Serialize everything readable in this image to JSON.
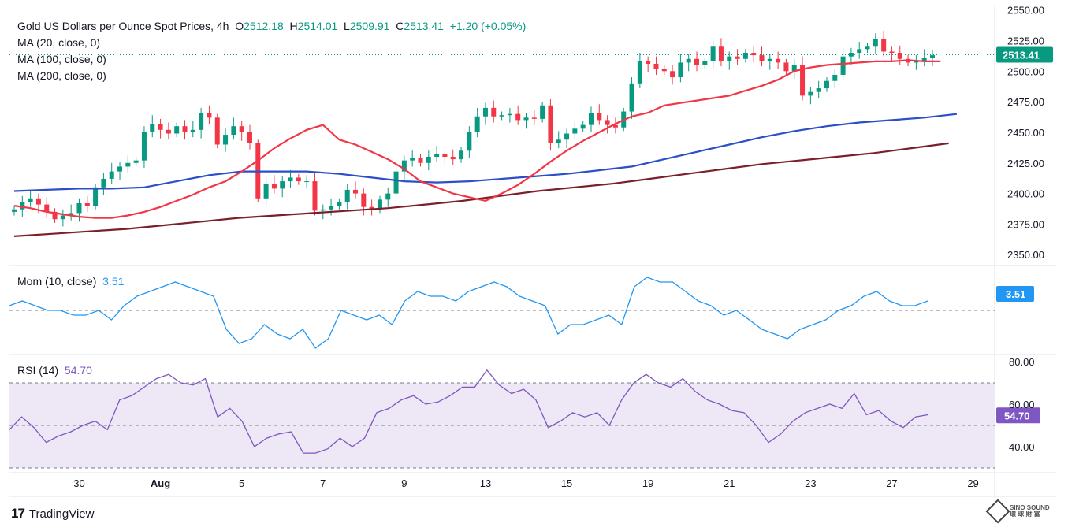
{
  "header": {
    "symbol": "Gold US Dollars per Ounce Spot Prices, 4h",
    "open_label": "O",
    "open": "2512.18",
    "high_label": "H",
    "high": "2514.01",
    "low_label": "L",
    "low": "2509.91",
    "close_label": "C",
    "close": "2513.41",
    "change": "+1.20 (+0.05%)"
  },
  "indicators": {
    "ma20": "MA (20, close, 0)",
    "ma100": "MA (100, close, 0)",
    "ma200": "MA (200, close, 0)",
    "mom": "Mom (10, close)",
    "mom_value": "3.51",
    "rsi": "RSI (14)",
    "rsi_value": "54.70"
  },
  "footer": {
    "brand": "TradingView",
    "watermark_top": "SINO SOUND",
    "watermark_bottom": "環 球 財 富"
  },
  "colors": {
    "up": "#089981",
    "down": "#F23645",
    "ma20": "#F23645",
    "ma100": "#2B4FC7",
    "ma200": "#7B1F2A",
    "mom": "#2196F3",
    "rsi": "#7E57C2",
    "rsi_band": "#EDE7F6"
  },
  "chart_data": {
    "type": "candlestick",
    "price_axis": {
      "ticks": [
        "2550.00",
        "2525.00",
        "2500.00",
        "2475.00",
        "2450.00",
        "2425.00",
        "2400.00",
        "2375.00",
        "2350.00"
      ],
      "range": [
        2345,
        2553
      ],
      "last_price": "2513.41"
    },
    "x_axis_labels": [
      {
        "label": "30",
        "index": 8
      },
      {
        "label": "Aug",
        "index": 18
      },
      {
        "label": "5",
        "index": 28
      },
      {
        "label": "7",
        "index": 38
      },
      {
        "label": "9",
        "index": 48
      },
      {
        "label": "13",
        "index": 58
      },
      {
        "label": "15",
        "index": 68
      },
      {
        "label": "19",
        "index": 78
      },
      {
        "label": "21",
        "index": 88
      },
      {
        "label": "23",
        "index": 98
      },
      {
        "label": "27",
        "index": 108
      },
      {
        "label": "29",
        "index": 118
      }
    ],
    "closes": [
      2387,
      2393,
      2396,
      2391,
      2385,
      2379,
      2382,
      2384,
      2392,
      2390,
      2405,
      2412,
      2418,
      2422,
      2425,
      2427,
      2450,
      2457,
      2452,
      2449,
      2455,
      2450,
      2452,
      2466,
      2462,
      2440,
      2448,
      2455,
      2450,
      2441,
      2396,
      2408,
      2404,
      2410,
      2413,
      2410,
      2410,
      2386,
      2387,
      2390,
      2393,
      2403,
      2400,
      2389,
      2387,
      2395,
      2400,
      2418,
      2427,
      2429,
      2425,
      2430,
      2432,
      2430,
      2428,
      2435,
      2450,
      2463,
      2470,
      2463,
      2464,
      2465,
      2460,
      2462,
      2461,
      2472,
      2441,
      2444,
      2449,
      2453,
      2456,
      2466,
      2460,
      2456,
      2454,
      2467,
      2490,
      2508,
      2506,
      2502,
      2500,
      2495,
      2507,
      2510,
      2505,
      2508,
      2520,
      2508,
      2512,
      2510,
      2515,
      2513,
      2508,
      2510,
      2507,
      2500,
      2505,
      2480,
      2483,
      2486,
      2492,
      2497,
      2512,
      2515,
      2518,
      2520,
      2526,
      2516,
      2515,
      2510,
      2507,
      2508,
      2511,
      2513
    ],
    "ma20": [
      2390,
      2388,
      2385,
      2383,
      2381,
      2380,
      2380,
      2382,
      2385,
      2389,
      2394,
      2399,
      2405,
      2410,
      2418,
      2427,
      2437,
      2445,
      2452,
      2456,
      2444,
      2440,
      2434,
      2428,
      2420,
      2410,
      2405,
      2400,
      2397,
      2394,
      2400,
      2407,
      2416,
      2426,
      2435,
      2443,
      2450,
      2457,
      2463,
      2466,
      2472,
      2474,
      2476,
      2478,
      2480,
      2484,
      2488,
      2493,
      2500,
      2503,
      2505,
      2506,
      2507,
      2508,
      2508,
      2509,
      2508,
      2508
    ],
    "ma20_index_step": 2,
    "ma100": [
      2402,
      2403,
      2404,
      2404,
      2405,
      2410,
      2415,
      2418,
      2418,
      2418,
      2416,
      2413,
      2410,
      2409,
      2410,
      2412,
      2414,
      2416,
      2419,
      2422,
      2428,
      2434,
      2440,
      2446,
      2451,
      2455,
      2458,
      2460,
      2462,
      2465
    ],
    "ma100_index_step": 4,
    "ma200": [
      2365,
      2367,
      2369,
      2371,
      2374,
      2377,
      2380,
      2382,
      2384,
      2386,
      2388,
      2391,
      2394,
      2398,
      2402,
      2405,
      2408,
      2412,
      2416,
      2420,
      2424,
      2427,
      2430,
      2433,
      2437,
      2441
    ],
    "ma200_index_step": 4.6,
    "mom": {
      "range": [
        -8,
        7
      ],
      "zero": 0,
      "values": [
        1,
        2,
        1,
        0,
        0,
        -1,
        -1,
        0,
        -2,
        1,
        3,
        4,
        5,
        6,
        5,
        4,
        3,
        -4,
        -7,
        -6,
        -3,
        -5,
        -6,
        -4,
        -8,
        -6,
        0,
        -1,
        -2,
        -1,
        -3,
        2,
        4,
        3,
        3,
        2,
        4,
        5,
        6,
        5,
        3,
        2,
        1,
        -5,
        -3,
        -3,
        -2,
        -1,
        -3,
        5,
        7,
        6,
        6,
        4,
        2,
        1,
        -1,
        0,
        -2,
        -4,
        -5,
        -6,
        -4,
        -3,
        -2,
        0,
        1,
        3,
        4,
        2,
        1,
        1,
        2
      ]
    },
    "rsi": {
      "range": [
        30,
        80
      ],
      "ticks": [
        "80.00",
        "60.00",
        "40.00"
      ],
      "band": [
        30,
        70
      ],
      "mid": 50,
      "values": [
        48,
        54,
        49,
        42,
        45,
        47,
        50,
        52,
        48,
        62,
        64,
        68,
        72,
        74,
        70,
        69,
        72,
        54,
        58,
        52,
        40,
        44,
        46,
        47,
        37,
        37,
        39,
        44,
        40,
        44,
        56,
        58,
        62,
        64,
        60,
        61,
        64,
        68,
        68,
        76,
        69,
        65,
        67,
        62,
        49,
        52,
        56,
        54,
        56,
        50,
        62,
        70,
        74,
        70,
        68,
        72,
        66,
        62,
        60,
        57,
        56,
        50,
        42,
        46,
        52,
        56,
        58,
        60,
        58,
        65,
        55,
        57,
        52,
        49,
        54,
        55
      ]
    }
  }
}
